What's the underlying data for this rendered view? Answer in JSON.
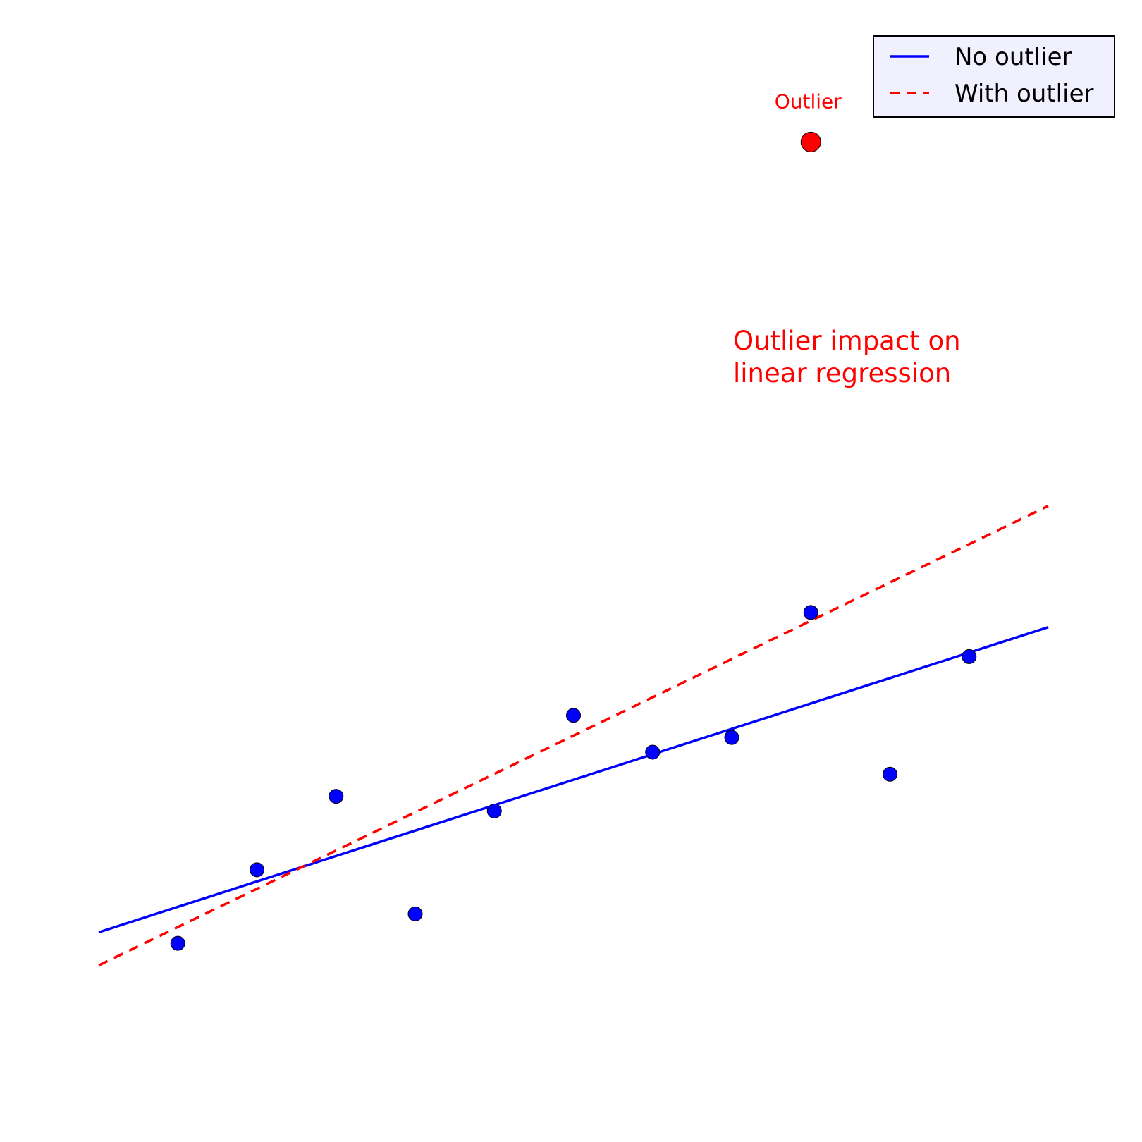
{
  "chart_data": {
    "type": "scatter",
    "title": "",
    "xlabel": "",
    "ylabel": "",
    "grid": false,
    "axes_visible": false,
    "xlim": [
      0,
      12
    ],
    "ylim": [
      0,
      14
    ],
    "series": [
      {
        "name": "",
        "kind": "points",
        "color": "#0000ff",
        "x": [
          1,
          2,
          3,
          4,
          5,
          6,
          7,
          8,
          9,
          10,
          11
        ],
        "y": [
          1.6,
          2.6,
          3.6,
          2.0,
          3.4,
          4.7,
          4.2,
          4.4,
          6.1,
          3.9,
          5.5
        ]
      },
      {
        "name": "Outlier",
        "kind": "points",
        "color": "#ff0000",
        "x": [
          9
        ],
        "y": [
          12.5
        ]
      },
      {
        "name": "No outlier",
        "kind": "line",
        "style": "solid",
        "color": "#0000ff",
        "x": [
          0,
          12
        ],
        "y": [
          1.75,
          5.9
        ]
      },
      {
        "name": "With outlier",
        "kind": "line",
        "style": "dashed",
        "color": "#ff0000",
        "x": [
          0,
          12
        ],
        "y": [
          1.3,
          7.55
        ]
      }
    ],
    "annotations": [
      {
        "text": "Outlier",
        "color": "#ff0000"
      },
      {
        "text": "Outlier impact on\nlinear regression",
        "color": "#ff0000"
      }
    ],
    "legend": {
      "position": "top-right",
      "entries": [
        "No outlier",
        "With outlier"
      ]
    }
  }
}
